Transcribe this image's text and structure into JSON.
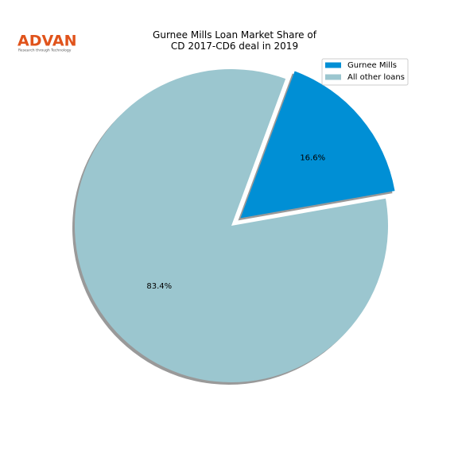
{
  "logo": {
    "name": "ADVAN",
    "tagline": "Research through Technology"
  },
  "chart_data": {
    "type": "pie",
    "title": "Gurnee Mills Loan Market Share of\nCD 2017-CD6 deal in 2019",
    "categories": [
      "Gurnee Mills",
      "All other loans"
    ],
    "values": [
      16.6,
      83.4
    ],
    "value_labels": [
      "16.6%",
      "83.4%"
    ],
    "colors": [
      "#008fd5",
      "#9bc6cf"
    ],
    "legend": "upper right"
  }
}
